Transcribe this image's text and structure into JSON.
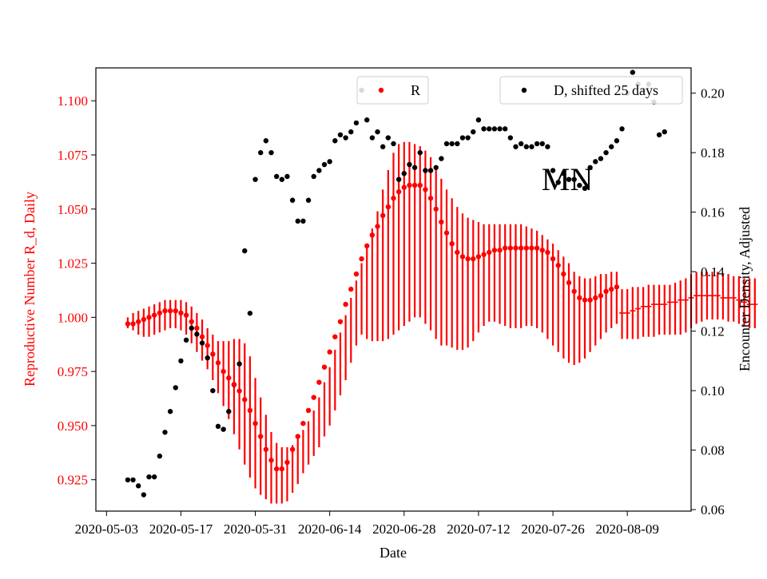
{
  "chart_data": {
    "type": "scatter",
    "annotation": "MN",
    "xlabel": "Date",
    "ylabel_left": "Reproductive Number R_d, Daily",
    "ylabel_right": "Encounter Density, Adjusted",
    "x_range": [
      "2020-05-01",
      "2020-08-21"
    ],
    "ylim_left": [
      0.9105,
      1.1152
    ],
    "ylim_right": [
      0.0595,
      0.2085
    ],
    "x_ticks": [
      "2020-05-03",
      "2020-05-17",
      "2020-05-31",
      "2020-06-14",
      "2020-06-28",
      "2020-07-12",
      "2020-07-26",
      "2020-08-09"
    ],
    "y_ticks_left": [
      "0.925",
      "0.950",
      "0.975",
      "1.000",
      "1.025",
      "1.050",
      "1.075",
      "1.100"
    ],
    "y_ticks_right": [
      "0.06",
      "0.08",
      "0.10",
      "0.12",
      "0.14",
      "0.16",
      "0.18",
      "0.20"
    ],
    "colors": {
      "r_series": "#ff0000",
      "d_series": "#000000",
      "left_axis": "#ff0000",
      "right_axis": "#000000"
    },
    "legends": [
      {
        "label": "R",
        "color": "#ff0000",
        "position": "upper-center"
      },
      {
        "label": "D, shifted 25 days",
        "color": "#000000",
        "position": "upper-right"
      }
    ],
    "series": [
      {
        "name": "R",
        "axis": "left",
        "x_start": "2020-05-07",
        "values": [
          0.997,
          0.997,
          0.998,
          0.999,
          1.0,
          1.001,
          1.002,
          1.003,
          1.003,
          1.003,
          1.002,
          1.001,
          0.998,
          0.995,
          0.991,
          0.987,
          0.983,
          0.979,
          0.975,
          0.972,
          0.969,
          0.966,
          0.962,
          0.957,
          0.951,
          0.945,
          0.939,
          0.934,
          0.93,
          0.93,
          0.933,
          0.939,
          0.945,
          0.951,
          0.957,
          0.963,
          0.97,
          0.977,
          0.984,
          0.991,
          0.998,
          1.006,
          1.013,
          1.02,
          1.027,
          1.033,
          1.038,
          1.042,
          1.047,
          1.051,
          1.055,
          1.058,
          1.06,
          1.061,
          1.061,
          1.061,
          1.059,
          1.055,
          1.05,
          1.044,
          1.039,
          1.034,
          1.03,
          1.028,
          1.027,
          1.027,
          1.028,
          1.029,
          1.03,
          1.031,
          1.031,
          1.032,
          1.032,
          1.032,
          1.032,
          1.032,
          1.032,
          1.032,
          1.031,
          1.03,
          1.027,
          1.024,
          1.02,
          1.016,
          1.012,
          1.009,
          1.008,
          1.008,
          1.009,
          1.01,
          1.012,
          1.013,
          1.014
        ],
        "err_low": [
          0.995,
          0.994,
          0.992,
          0.991,
          0.991,
          0.992,
          0.993,
          0.994,
          0.995,
          0.995,
          0.994,
          0.992,
          0.988,
          0.984,
          0.98,
          0.976,
          0.971,
          0.965,
          0.959,
          0.953,
          0.946,
          0.939,
          0.932,
          0.926,
          0.921,
          0.918,
          0.916,
          0.914,
          0.914,
          0.914,
          0.915,
          0.919,
          0.923,
          0.928,
          0.932,
          0.936,
          0.94,
          0.945,
          0.95,
          0.957,
          0.964,
          0.971,
          0.979,
          0.987,
          0.992,
          0.99,
          0.989,
          0.989,
          0.989,
          0.99,
          0.992,
          0.994,
          0.996,
          0.998,
          1.0,
          1.0,
          0.997,
          0.994,
          0.99,
          0.987,
          0.987,
          0.986,
          0.985,
          0.985,
          0.986,
          0.989,
          0.993,
          0.996,
          0.998,
          0.998,
          0.997,
          0.996,
          0.995,
          0.995,
          0.995,
          0.996,
          0.996,
          0.995,
          0.993,
          0.99,
          0.987,
          0.984,
          0.981,
          0.979,
          0.978,
          0.979,
          0.981,
          0.984,
          0.987,
          0.99,
          0.993,
          0.995,
          0.997
        ],
        "err_high": [
          1.0,
          1.002,
          1.003,
          1.004,
          1.005,
          1.006,
          1.007,
          1.008,
          1.008,
          1.008,
          1.008,
          1.007,
          1.005,
          1.002,
          0.999,
          0.995,
          0.992,
          0.989,
          0.989,
          0.989,
          0.99,
          0.99,
          0.988,
          0.982,
          0.972,
          0.963,
          0.955,
          0.947,
          0.942,
          0.94,
          0.94,
          0.941,
          0.944,
          0.948,
          0.952,
          0.957,
          0.963,
          0.97,
          0.977,
          0.985,
          0.993,
          1.001,
          1.009,
          1.017,
          1.025,
          1.033,
          1.041,
          1.049,
          1.059,
          1.068,
          1.076,
          1.08,
          1.081,
          1.081,
          1.08,
          1.079,
          1.077,
          1.074,
          1.069,
          1.064,
          1.059,
          1.055,
          1.051,
          1.048,
          1.046,
          1.045,
          1.044,
          1.043,
          1.043,
          1.043,
          1.043,
          1.043,
          1.043,
          1.043,
          1.043,
          1.042,
          1.041,
          1.04,
          1.038,
          1.036,
          1.034,
          1.031,
          1.028,
          1.025,
          1.021,
          1.019,
          1.018,
          1.018,
          1.019,
          1.02,
          1.02,
          1.021,
          1.021
        ]
      },
      {
        "name": "R",
        "axis": "left",
        "x_start": "2020-08-08",
        "values": [
          1.002,
          1.002,
          1.003,
          1.004,
          1.005,
          1.005,
          1.006,
          1.006,
          1.006,
          1.007,
          1.007,
          1.008,
          1.008,
          1.009,
          1.01,
          1.01,
          1.01,
          1.01,
          1.01,
          1.009,
          1.009,
          1.009,
          1.008,
          1.007,
          1.006,
          1.006
        ],
        "err_low": [
          0.99,
          0.99,
          0.99,
          0.99,
          0.991,
          0.991,
          0.991,
          0.992,
          0.992,
          0.992,
          0.992,
          0.992,
          0.993,
          0.995,
          0.997,
          0.998,
          0.999,
          0.999,
          0.999,
          0.999,
          0.998,
          0.998,
          0.997,
          0.996,
          0.995,
          0.995
        ],
        "err_high": [
          1.013,
          1.013,
          1.014,
          1.014,
          1.014,
          1.015,
          1.015,
          1.015,
          1.015,
          1.015,
          1.016,
          1.017,
          1.018,
          1.02,
          1.021,
          1.021,
          1.021,
          1.021,
          1.021,
          1.02,
          1.02,
          1.019,
          1.019,
          1.018,
          1.018,
          1.018
        ]
      },
      {
        "name": "D, shifted 25 days",
        "axis": "right",
        "x_start": "2020-05-07",
        "values": [
          0.07,
          0.07,
          0.068,
          0.065,
          0.071,
          0.071,
          0.078,
          0.086,
          0.093,
          0.101,
          0.11,
          0.117,
          0.121,
          0.119,
          0.116,
          0.111,
          0.1,
          0.088,
          0.087,
          0.093,
          0.102,
          0.109,
          0.147,
          0.126,
          0.171,
          0.18,
          0.184,
          0.18,
          0.172,
          0.171,
          0.172,
          0.164,
          0.157,
          0.157,
          0.164,
          0.172,
          0.174,
          0.176,
          0.177,
          0.184,
          0.186,
          0.185,
          0.187,
          0.19,
          0.201,
          0.191,
          0.185,
          0.187,
          0.182,
          0.185,
          0.183,
          0.171,
          0.173,
          0.176,
          0.175,
          0.18,
          0.174,
          0.174,
          0.175,
          0.178,
          0.183,
          0.183,
          0.183,
          0.185,
          0.185,
          0.187,
          0.191,
          0.188,
          0.188,
          0.188,
          0.188,
          0.188,
          0.185,
          0.182,
          0.183,
          0.182,
          0.182,
          0.183,
          0.183,
          0.182,
          0.174,
          0.17,
          0.173,
          0.171,
          0.171,
          0.169,
          0.168,
          0.175,
          0.177,
          0.178,
          0.18,
          0.182,
          0.184,
          0.188,
          0.2,
          0.207,
          0.203,
          0.201,
          0.203,
          0.197,
          0.186,
          0.187
        ]
      }
    ]
  }
}
